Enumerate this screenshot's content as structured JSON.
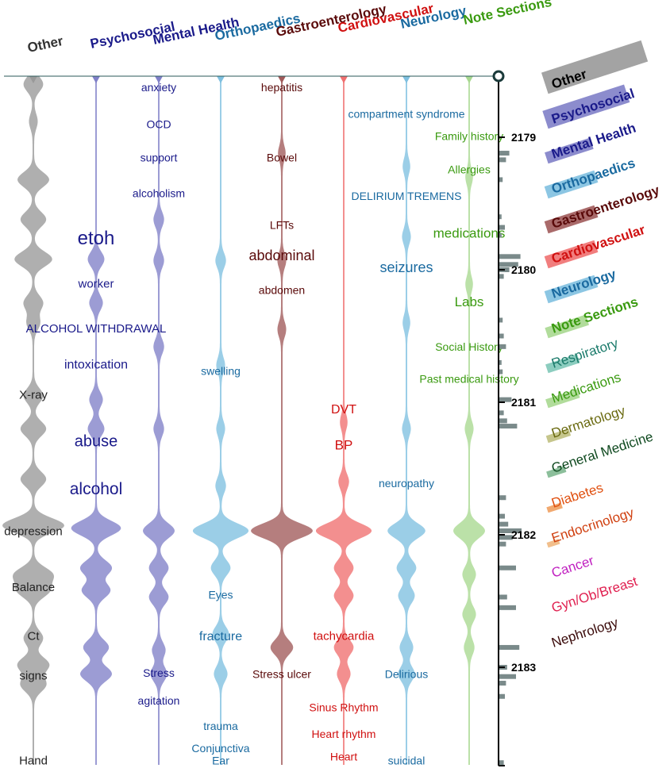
{
  "chart_data": {
    "type": "streamgraph",
    "y_axis": {
      "ticks": [
        {
          "label": "2179",
          "value": 2179
        },
        {
          "label": "2180",
          "value": 2180
        },
        {
          "label": "2181",
          "value": 2181
        },
        {
          "label": "2182",
          "value": 2182
        },
        {
          "label": "2183",
          "value": 2183
        }
      ],
      "range": [
        2178.55,
        2183.75
      ]
    },
    "columns": [
      {
        "name": "Other",
        "color": "#999999",
        "label_color": "#333333",
        "bulges": [
          [
            2178.6,
            0.3
          ],
          [
            2178.88,
            0.12
          ],
          [
            2179.32,
            0.5
          ],
          [
            2179.62,
            0.4
          ],
          [
            2179.92,
            0.6
          ],
          [
            2180.25,
            0.3
          ],
          [
            2180.4,
            0.2
          ],
          [
            2180.95,
            0.3
          ],
          [
            2181.2,
            0.4
          ],
          [
            2181.58,
            0.4
          ],
          [
            2181.93,
            1.0
          ],
          [
            2182.3,
            0.6
          ],
          [
            2182.42,
            0.5
          ],
          [
            2182.78,
            0.3
          ],
          [
            2182.98,
            0.5
          ],
          [
            2183.13,
            0.4
          ]
        ],
        "terms": [
          {
            "text": "X-ray",
            "value": 2180.95,
            "size": 15,
            "color": "#222222"
          },
          {
            "text": "depression",
            "value": 2181.98,
            "size": 15,
            "color": "#222222"
          },
          {
            "text": "Balance",
            "value": 2182.4,
            "size": 15,
            "color": "#222222"
          },
          {
            "text": "Ct",
            "value": 2182.77,
            "size": 15,
            "color": "#222222"
          },
          {
            "text": "signs",
            "value": 2183.07,
            "size": 15,
            "color": "#222222"
          },
          {
            "text": "Hand",
            "value": 2183.71,
            "size": 15,
            "color": "#222222"
          }
        ]
      },
      {
        "name": "Psychosocial",
        "color": "#8080c8",
        "label_color": "#1a1a8a",
        "bulges": [
          [
            2179.92,
            0.25
          ],
          [
            2180.25,
            0.2
          ],
          [
            2180.98,
            0.2
          ],
          [
            2181.2,
            0.25
          ],
          [
            2181.95,
            0.8
          ],
          [
            2182.25,
            0.5
          ],
          [
            2182.42,
            0.45
          ],
          [
            2182.85,
            0.4
          ],
          [
            2183.05,
            0.5
          ]
        ],
        "terms": [
          {
            "text": "etoh",
            "value": 2179.77,
            "size": 24,
            "color": "#1a1a8a"
          },
          {
            "text": "worker",
            "value": 2180.11,
            "size": 15,
            "color": "#1a1a8a"
          },
          {
            "text": "ALCOHOL WITHDRAWAL",
            "value": 2180.45,
            "size": 15,
            "color": "#1a1a8a"
          },
          {
            "text": "intoxication",
            "value": 2180.72,
            "size": 16,
            "color": "#1a1a8a"
          },
          {
            "text": "abuse",
            "value": 2181.3,
            "size": 20,
            "color": "#1a1a8a"
          },
          {
            "text": "alcohol",
            "value": 2181.66,
            "size": 21,
            "color": "#1a1a8a"
          }
        ]
      },
      {
        "name": "Mental Health",
        "color": "#8080c8",
        "label_color": "#1a1a8a",
        "bulges": [
          [
            2179.62,
            0.15
          ],
          [
            2179.93,
            0.15
          ],
          [
            2180.58,
            0.15
          ],
          [
            2181.2,
            0.15
          ],
          [
            2181.97,
            0.5
          ],
          [
            2182.25,
            0.3
          ],
          [
            2182.47,
            0.3
          ],
          [
            2182.87,
            0.2
          ],
          [
            2183.05,
            0.25
          ]
        ],
        "terms": [
          {
            "text": "anxiety",
            "value": 2178.63,
            "size": 14,
            "color": "#1a1a8a"
          },
          {
            "text": "OCD",
            "value": 2178.91,
            "size": 14,
            "color": "#1a1a8a"
          },
          {
            "text": "support",
            "value": 2179.16,
            "size": 14,
            "color": "#1a1a8a"
          },
          {
            "text": "alcoholism",
            "value": 2179.43,
            "size": 14,
            "color": "#1a1a8a"
          },
          {
            "text": "Stress",
            "value": 2183.05,
            "size": 14,
            "color": "#1a1a8a"
          },
          {
            "text": "agitation",
            "value": 2183.26,
            "size": 14,
            "color": "#1a1a8a"
          }
        ]
      },
      {
        "name": "Orthopaedics",
        "color": "#7fc0e0",
        "label_color": "#1a6aa0",
        "bulges": [
          [
            2179.93,
            0.15
          ],
          [
            2180.72,
            0.12
          ],
          [
            2181.2,
            0.12
          ],
          [
            2181.63,
            0.15
          ],
          [
            2181.97,
            0.9
          ],
          [
            2182.25,
            0.3
          ],
          [
            2182.75,
            0.25
          ],
          [
            2183.05,
            0.2
          ]
        ],
        "terms": [
          {
            "text": "swelling",
            "value": 2180.77,
            "size": 14,
            "color": "#1a6aa0"
          },
          {
            "text": "Eyes",
            "value": 2182.46,
            "size": 14,
            "color": "#1a6aa0"
          },
          {
            "text": "fracture",
            "value": 2182.77,
            "size": 16,
            "color": "#1a6aa0"
          },
          {
            "text": "trauma",
            "value": 2183.45,
            "size": 14,
            "color": "#1a6aa0"
          },
          {
            "text": "Conjunctiva",
            "value": 2183.62,
            "size": 14,
            "color": "#1a6aa0"
          },
          {
            "text": "Ear",
            "value": 2183.71,
            "size": 14,
            "color": "#1a6aa0"
          }
        ]
      },
      {
        "name": "Gastroenterology",
        "color": "#a05a5a",
        "label_color": "#5a0a0a",
        "bulges": [
          [
            2179.12,
            0.1
          ],
          [
            2179.93,
            0.12
          ],
          [
            2180.45,
            0.12
          ],
          [
            2181.97,
            1.0
          ],
          [
            2182.85,
            0.35
          ]
        ],
        "terms": [
          {
            "text": "hepatitis",
            "value": 2178.63,
            "size": 14,
            "color": "#5a0a0a"
          },
          {
            "text": "Bowel",
            "value": 2179.16,
            "size": 14,
            "color": "#5a0a0a"
          },
          {
            "text": "LFTs",
            "value": 2179.67,
            "size": 14,
            "color": "#5a0a0a"
          },
          {
            "text": "abdominal",
            "value": 2179.9,
            "size": 18,
            "color": "#5a0a0a"
          },
          {
            "text": "abdomen",
            "value": 2180.16,
            "size": 14,
            "color": "#5a0a0a"
          },
          {
            "text": "Stress ulcer",
            "value": 2183.06,
            "size": 14,
            "color": "#5a0a0a"
          }
        ]
      },
      {
        "name": "Cardiovascular",
        "color": "#f07070",
        "label_color": "#d01010",
        "bulges": [
          [
            2181.15,
            0.1
          ],
          [
            2181.6,
            0.15
          ],
          [
            2181.97,
            0.9
          ],
          [
            2182.25,
            0.3
          ],
          [
            2182.46,
            0.3
          ],
          [
            2182.85,
            0.3
          ],
          [
            2183.05,
            0.2
          ]
        ],
        "terms": [
          {
            "text": "DVT",
            "value": 2181.06,
            "size": 16,
            "color": "#d01010"
          },
          {
            "text": "BP",
            "value": 2181.33,
            "size": 17,
            "color": "#d01010"
          },
          {
            "text": "tachycardia",
            "value": 2182.77,
            "size": 15,
            "color": "#d01010"
          },
          {
            "text": "Sinus Rhythm",
            "value": 2183.31,
            "size": 14,
            "color": "#d01010"
          },
          {
            "text": "Heart rhythm",
            "value": 2183.51,
            "size": 14,
            "color": "#d01010"
          },
          {
            "text": "Heart",
            "value": 2183.68,
            "size": 14,
            "color": "#d01010"
          }
        ]
      },
      {
        "name": "Neurology",
        "color": "#7fc0e0",
        "label_color": "#1a6aa0",
        "bulges": [
          [
            2179.22,
            0.1
          ],
          [
            2179.75,
            0.12
          ],
          [
            2180.4,
            0.1
          ],
          [
            2181.2,
            0.12
          ],
          [
            2181.97,
            0.6
          ],
          [
            2182.25,
            0.3
          ],
          [
            2182.46,
            0.25
          ],
          [
            2182.85,
            0.2
          ],
          [
            2183.05,
            0.25
          ]
        ],
        "terms": [
          {
            "text": "compartment syndrome",
            "value": 2178.83,
            "size": 14,
            "color": "#1a6aa0"
          },
          {
            "text": "DELIRIUM TREMENS",
            "value": 2179.45,
            "size": 14,
            "color": "#1a6aa0"
          },
          {
            "text": "seizures",
            "value": 2179.99,
            "size": 18,
            "color": "#1a6aa0"
          },
          {
            "text": "neuropathy",
            "value": 2181.62,
            "size": 14,
            "color": "#1a6aa0"
          },
          {
            "text": "Delirious",
            "value": 2183.06,
            "size": 14,
            "color": "#1a6aa0"
          },
          {
            "text": "suicidal",
            "value": 2183.71,
            "size": 14,
            "color": "#1a6aa0"
          }
        ]
      },
      {
        "name": "Note Sections",
        "color": "#a8d890",
        "label_color": "#3a9a10",
        "bulges": [
          [
            2179.3,
            0.1
          ],
          [
            2180.11,
            0.1
          ],
          [
            2181.2,
            0.12
          ],
          [
            2181.97,
            0.5
          ],
          [
            2182.3,
            0.2
          ],
          [
            2182.6,
            0.2
          ],
          [
            2182.85,
            0.15
          ]
        ],
        "terms": [
          {
            "text": "Family history",
            "value": 2179.0,
            "size": 14,
            "color": "#3a9a10"
          },
          {
            "text": "Allergies",
            "value": 2179.25,
            "size": 14,
            "color": "#3a9a10"
          },
          {
            "text": "medications",
            "value": 2179.73,
            "size": 17,
            "color": "#3a9a10"
          },
          {
            "text": "Labs",
            "value": 2180.25,
            "size": 17,
            "color": "#3a9a10"
          },
          {
            "text": "Social History",
            "value": 2180.59,
            "size": 14,
            "color": "#3a9a10"
          },
          {
            "text": "Past medical history",
            "value": 2180.83,
            "size": 14,
            "color": "#3a9a10"
          }
        ]
      }
    ],
    "histogram": [
      [
        2179.12,
        0.45
      ],
      [
        2179.17,
        0.3
      ],
      [
        2179.32,
        0.15
      ],
      [
        2179.6,
        0.1
      ],
      [
        2179.68,
        0.25
      ],
      [
        2179.74,
        0.1
      ],
      [
        2179.9,
        0.95
      ],
      [
        2179.96,
        0.85
      ],
      [
        2180.0,
        0.45
      ],
      [
        2180.05,
        0.2
      ],
      [
        2180.38,
        0.15
      ],
      [
        2180.5,
        0.2
      ],
      [
        2180.58,
        0.3
      ],
      [
        2180.7,
        0.1
      ],
      [
        2180.77,
        0.15
      ],
      [
        2180.98,
        0.55
      ],
      [
        2181.08,
        0.2
      ],
      [
        2181.14,
        0.35
      ],
      [
        2181.18,
        0.8
      ],
      [
        2181.72,
        0.3
      ],
      [
        2181.86,
        0.25
      ],
      [
        2181.92,
        0.4
      ],
      [
        2181.97,
        1.0
      ],
      [
        2182.02,
        0.6
      ],
      [
        2182.07,
        0.3
      ],
      [
        2182.25,
        0.75
      ],
      [
        2182.47,
        0.35
      ],
      [
        2182.55,
        0.75
      ],
      [
        2182.85,
        0.9
      ],
      [
        2183.0,
        0.35
      ],
      [
        2183.07,
        0.75
      ],
      [
        2183.12,
        0.3
      ],
      [
        2183.22,
        0.25
      ],
      [
        2183.72,
        0.2
      ]
    ],
    "legend": {
      "placement": "right",
      "items": [
        {
          "label": "Other",
          "swatch": "#999999",
          "color": "#000000",
          "weight": 1.0
        },
        {
          "label": "Psychosocial",
          "swatch": "#8080c8",
          "color": "#1a1a8a",
          "weight": 0.8
        },
        {
          "label": "Mental Health",
          "swatch": "#8080c8",
          "color": "#1a1a8a",
          "weight": 0.4
        },
        {
          "label": "Orthopaedics",
          "swatch": "#7fc0e0",
          "color": "#1a6aa0",
          "weight": 0.45
        },
        {
          "label": "Gastroenterology",
          "swatch": "#a05a5a",
          "color": "#5a0a0a",
          "weight": 0.45
        },
        {
          "label": "Cardiovascular",
          "swatch": "#f07070",
          "color": "#d01010",
          "weight": 0.45
        },
        {
          "label": "Neurology",
          "swatch": "#7fc0e0",
          "color": "#1a6aa0",
          "weight": 0.45
        },
        {
          "label": "Note Sections",
          "swatch": "#a8d890",
          "color": "#3a9a10",
          "weight": 0.35
        },
        {
          "label": "Respiratory",
          "swatch": "#80c8b8",
          "color": "#1a7a6a",
          "weight": 0.25
        },
        {
          "label": "Medications",
          "swatch": "#a8d890",
          "color": "#3a9a10",
          "weight": 0.25
        },
        {
          "label": "Dermatology",
          "swatch": "#c0c080",
          "color": "#6a6a10",
          "weight": 0.15
        },
        {
          "label": "General Medicine",
          "swatch": "#80b890",
          "color": "#104a20",
          "weight": 0.1
        },
        {
          "label": "Diabetes",
          "swatch": "#f0a060",
          "color": "#e05010",
          "weight": 0.06
        },
        {
          "label": "Endocrinology",
          "swatch": "#f0b880",
          "color": "#d04010",
          "weight": 0.03
        },
        {
          "label": "Cancer",
          "swatch": "#e080e0",
          "color": "#c020c0",
          "weight": 0
        },
        {
          "label": "Gyn/Ob/Breast",
          "swatch": "#f080a0",
          "color": "#e02050",
          "weight": 0
        },
        {
          "label": "Nephrology",
          "swatch": "#804040",
          "color": "#3a0a0a",
          "weight": 0
        }
      ]
    }
  }
}
